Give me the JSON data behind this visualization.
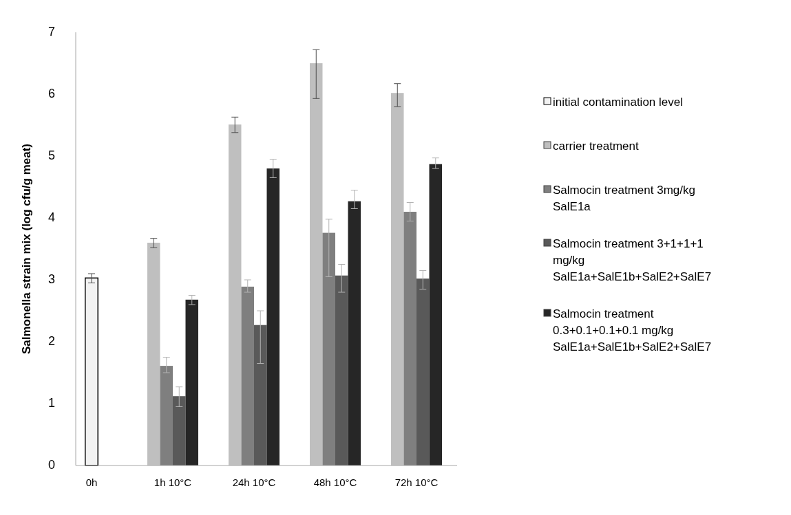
{
  "chart_data": {
    "type": "bar",
    "ylabel": "Salmonella strain mix (log cfu/g meat)",
    "categories": [
      "0h",
      "1h 10°C",
      "24h 10°C",
      "48h 10°C",
      "72h 10°C"
    ],
    "ylim": [
      0,
      7
    ],
    "yticks": [
      0,
      1,
      2,
      3,
      4,
      5,
      6,
      7
    ],
    "grid": false,
    "legend": "right",
    "series": [
      {
        "name": "initial contamination level",
        "color": "#f2f2f2",
        "values": [
          3.03,
          null,
          null,
          null,
          null
        ],
        "errors": [
          [
            2.95,
            3.1
          ],
          null,
          null,
          null,
          null
        ]
      },
      {
        "name": "carrier treatment",
        "color": "#bfbfbf",
        "values": [
          null,
          3.6,
          5.51,
          6.5,
          6.02
        ],
        "errors": [
          null,
          [
            3.52,
            3.67
          ],
          [
            5.38,
            5.63
          ],
          [
            5.93,
            6.72
          ],
          [
            5.8,
            6.17
          ]
        ]
      },
      {
        "name": "Salmocin treatment 3mg/kg SalE1a",
        "color": "#7f7f7f",
        "values": [
          null,
          1.61,
          2.89,
          3.76,
          4.1
        ],
        "errors": [
          null,
          [
            1.5,
            1.75
          ],
          [
            2.8,
            3.0
          ],
          [
            3.05,
            3.98
          ],
          [
            3.95,
            4.25
          ]
        ]
      },
      {
        "name": "Salmocin treatment 3+1+1+1 mg/kg SalE1a+SalE1b+SalE2+SalE7",
        "color": "#595959",
        "values": [
          null,
          1.12,
          2.27,
          3.07,
          3.02
        ],
        "errors": [
          null,
          [
            0.95,
            1.27
          ],
          [
            1.65,
            2.5
          ],
          [
            2.8,
            3.25
          ],
          [
            2.85,
            3.15
          ]
        ]
      },
      {
        "name": "Salmocin treatment 0.3+0.1+0.1+0.1 mg/kg SalE1a+SalE1b+SalE2+SalE7",
        "color": "#262626",
        "values": [
          null,
          2.68,
          4.8,
          4.27,
          4.87
        ],
        "errors": [
          null,
          [
            2.6,
            2.75
          ],
          [
            4.65,
            4.95
          ],
          [
            4.15,
            4.45
          ],
          [
            4.8,
            4.97
          ]
        ]
      }
    ]
  }
}
